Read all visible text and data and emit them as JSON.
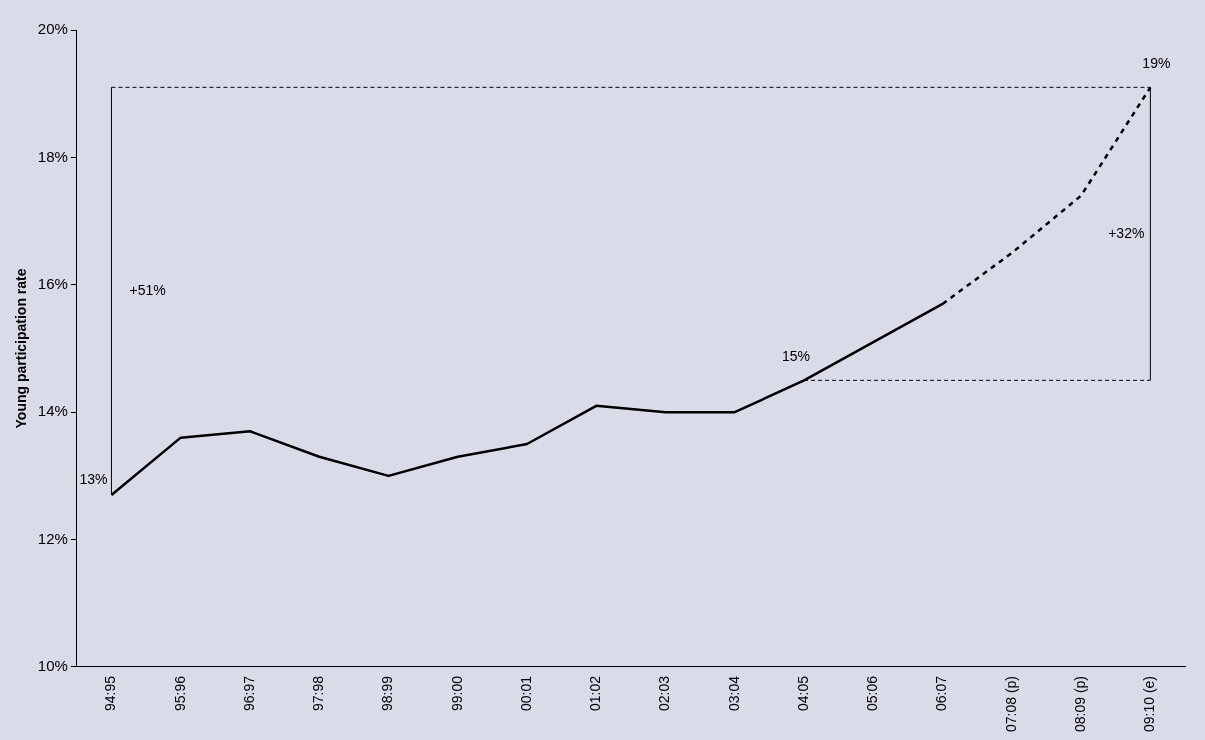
{
  "chart_data": {
    "type": "line",
    "ylabel": "Young participation rate",
    "categories": [
      "94:95",
      "95:96",
      "96:97",
      "97:98",
      "98:99",
      "99:00",
      "00:01",
      "01:02",
      "02:03",
      "03:04",
      "04:05",
      "05:06",
      "06:07",
      "07:08 (p)",
      "08:09 (p)",
      "09:10 (e)"
    ],
    "series": [
      {
        "color": "#000000",
        "line_style": "solid",
        "values": [
          12.7,
          13.6,
          13.7,
          13.3,
          13.0,
          13.3,
          13.5,
          14.1,
          14.0,
          14.0,
          14.5,
          15.1,
          15.7,
          null,
          null,
          null
        ]
      },
      {
        "color": "#000000",
        "line_style": "dashed",
        "values": [
          null,
          null,
          null,
          null,
          null,
          null,
          null,
          null,
          null,
          null,
          null,
          null,
          15.7,
          16.5,
          17.4,
          19.1
        ]
      }
    ],
    "ylim": [
      10,
      20
    ],
    "yticks": [
      {
        "value": 10,
        "label": "10%"
      },
      {
        "value": 12,
        "label": "12%"
      },
      {
        "value": 14,
        "label": "14%"
      },
      {
        "value": 16,
        "label": "16%"
      },
      {
        "value": 18,
        "label": "18%"
      },
      {
        "value": 20,
        "label": "20%"
      }
    ],
    "annotations": [
      {
        "text": "13%",
        "x": "94:95",
        "y": 12.7
      },
      {
        "text": "15%",
        "x": "04:05",
        "y": 14.5
      },
      {
        "text": "19%",
        "x": "09:10 (e)",
        "y": 19.1
      },
      "+51%",
      "+32%"
    ],
    "ref_lines": [
      {
        "axis": "y",
        "value": 19.1,
        "color": "#000000",
        "line_style": "dashed"
      },
      {
        "axis": "y",
        "value": 14.5,
        "color": "#000000",
        "line_style": "dashed"
      }
    ],
    "grid": false,
    "legend": false,
    "marker": "none"
  }
}
